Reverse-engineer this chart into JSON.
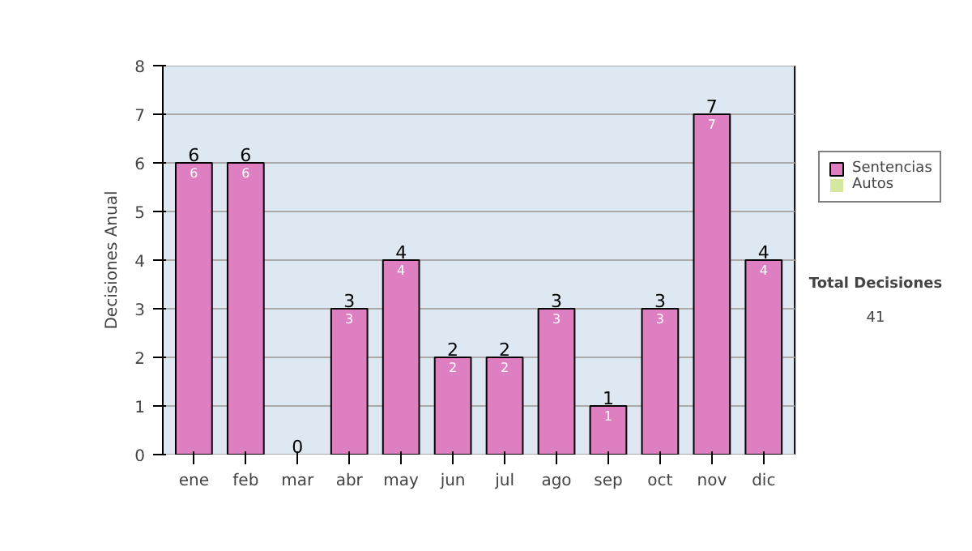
{
  "chart_data": {
    "type": "bar",
    "stacked": true,
    "ylabel": "Decisiones Anual",
    "categories": [
      "ene",
      "feb",
      "mar",
      "abr",
      "may",
      "jun",
      "jul",
      "ago",
      "sep",
      "oct",
      "nov",
      "dic"
    ],
    "series": [
      {
        "name": "Sentencias",
        "color": "#dd7fc0",
        "values": [
          6,
          6,
          0,
          3,
          4,
          2,
          2,
          3,
          1,
          3,
          7,
          4
        ],
        "value_labels": [
          "6",
          "6",
          null,
          "3",
          "4",
          "2",
          "2",
          "3",
          "1",
          "3",
          "7",
          "4"
        ]
      },
      {
        "name": "Autos",
        "color": "#d4e8a0",
        "values": [
          0,
          0,
          0,
          0,
          0,
          0,
          0,
          0,
          0,
          0,
          0,
          0
        ]
      }
    ],
    "totals": [
      "6",
      "6",
      "0",
      "3",
      "4",
      "2",
      "2",
      "3",
      "1",
      "3",
      "7",
      "4"
    ],
    "ylim": [
      0,
      8
    ],
    "yticks": [
      0,
      1,
      2,
      3,
      4,
      5,
      6,
      7,
      8
    ],
    "grid": "y",
    "legend": "right",
    "annotations": [
      "Total Decisiones",
      "41"
    ]
  }
}
